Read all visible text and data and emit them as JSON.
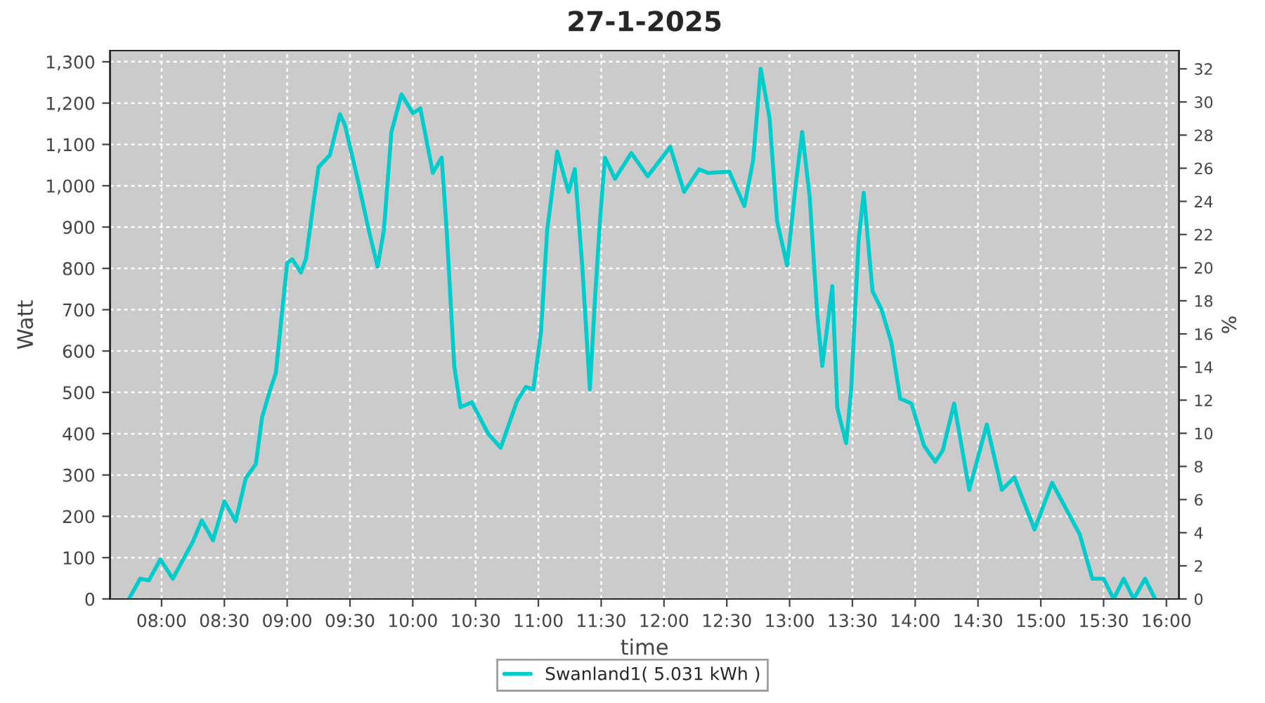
{
  "chart_data": {
    "type": "line",
    "title": "27-1-2025",
    "xlabel": "time",
    "ylabel": "Watt",
    "y2label": "%",
    "x": [
      7.74,
      7.83,
      7.9,
      7.99,
      8.09,
      8.18,
      8.25,
      8.32,
      8.41,
      8.5,
      8.59,
      8.67,
      8.75,
      8.8,
      8.86,
      8.91,
      8.95,
      9.0,
      9.04,
      9.11,
      9.15,
      9.21,
      9.25,
      9.34,
      9.42,
      9.46,
      9.56,
      9.65,
      9.72,
      9.77,
      9.83,
      9.91,
      10.0,
      10.06,
      10.16,
      10.23,
      10.27,
      10.33,
      10.38,
      10.47,
      10.6,
      10.7,
      10.83,
      10.9,
      10.96,
      11.02,
      11.07,
      11.15,
      11.24,
      11.29,
      11.35,
      11.41,
      11.45,
      11.49,
      11.53,
      11.61,
      11.74,
      11.87,
      12.05,
      12.16,
      12.28,
      12.35,
      12.52,
      12.64,
      12.71,
      12.77,
      12.84,
      12.9,
      12.98,
      13.05,
      13.1,
      13.16,
      13.22,
      13.26,
      13.34,
      13.38,
      13.45,
      13.49,
      13.55,
      13.59,
      13.66,
      13.73,
      13.81,
      13.88,
      13.97,
      14.07,
      14.16,
      14.22,
      14.31,
      14.43,
      14.57,
      14.69,
      14.79,
      14.95,
      15.09,
      15.24,
      15.31,
      15.41,
      15.5,
      15.58,
      15.66,
      15.74,
      15.83,
      15.91
    ],
    "series": [
      {
        "name": "Swanland1( 5.031 kWh )",
        "color": "#00cccc",
        "values": [
          0,
          49,
          45,
          96,
          49,
          100,
          139,
          190,
          142,
          236,
          188,
          292,
          326,
          439,
          502,
          547,
          666,
          813,
          822,
          790,
          824,
          960,
          1045,
          1074,
          1173,
          1147,
          1017,
          892,
          804,
          892,
          1130,
          1221,
          1176,
          1187,
          1031,
          1068,
          892,
          564,
          464,
          476,
          400,
          366,
          479,
          513,
          507,
          643,
          892,
          1083,
          985,
          1040,
          802,
          507,
          723,
          915,
          1068,
          1017,
          1079,
          1023,
          1094,
          985,
          1040,
          1031,
          1034,
          951,
          1062,
          1283,
          1164,
          915,
          807,
          1006,
          1130,
          972,
          689,
          564,
          757,
          462,
          377,
          507,
          870,
          983,
          745,
          702,
          621,
          485,
          473,
          371,
          332,
          360,
          473,
          264,
          422,
          264,
          294,
          168,
          281,
          196,
          156,
          49,
          49,
          0,
          49,
          0,
          49,
          0
        ]
      }
    ],
    "xlim": [
      7.59,
      16.1
    ],
    "xticks": [
      {
        "value": 8,
        "label": "08:00"
      },
      {
        "value": 8.5,
        "label": "08:30"
      },
      {
        "value": 9,
        "label": "09:00"
      },
      {
        "value": 9.5,
        "label": "09:30"
      },
      {
        "value": 10,
        "label": "10:00"
      },
      {
        "value": 10.5,
        "label": "10:30"
      },
      {
        "value": 11,
        "label": "11:00"
      },
      {
        "value": 11.5,
        "label": "11:30"
      },
      {
        "value": 12,
        "label": "12:00"
      },
      {
        "value": 12.5,
        "label": "12:30"
      },
      {
        "value": 13,
        "label": "13:00"
      },
      {
        "value": 13.5,
        "label": "13:30"
      },
      {
        "value": 14,
        "label": "14:00"
      },
      {
        "value": 14.5,
        "label": "14:30"
      },
      {
        "value": 15,
        "label": "15:00"
      },
      {
        "value": 15.5,
        "label": "15:30"
      },
      {
        "value": 16,
        "label": "16:00"
      }
    ],
    "ylim": [
      0,
      1327
    ],
    "yticks": [
      0,
      100,
      200,
      300,
      400,
      500,
      600,
      700,
      800,
      900,
      {
        "value": 1000,
        "label": "1,000"
      },
      {
        "value": 1100,
        "label": "1,100"
      },
      {
        "value": 1200,
        "label": "1,200"
      },
      {
        "value": 1300,
        "label": "1,300"
      }
    ],
    "y2lim": [
      0,
      33.1
    ],
    "y2ticks": [
      0,
      2,
      4,
      6,
      8,
      10,
      12,
      14,
      16,
      18,
      20,
      22,
      24,
      26,
      28,
      30,
      32
    ],
    "grid": true,
    "legend": "bottom",
    "line_style": "solid",
    "marker": "none"
  }
}
